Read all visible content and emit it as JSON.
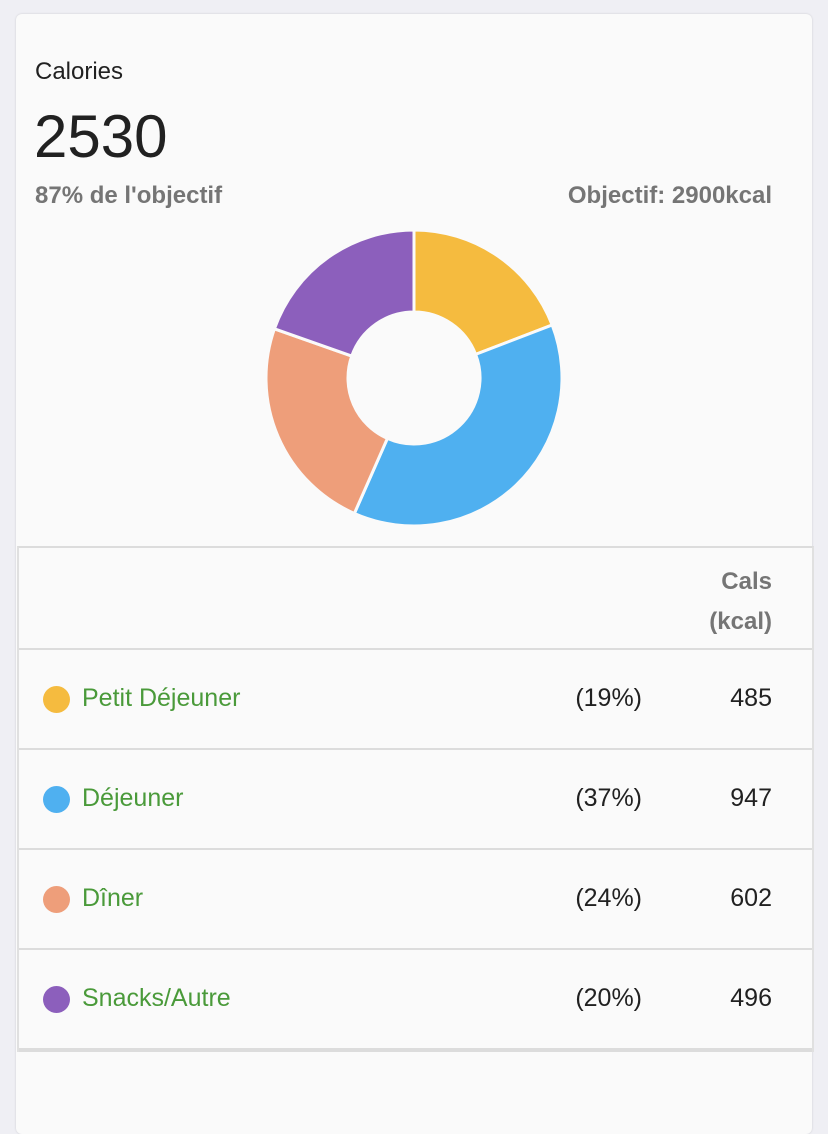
{
  "card": {
    "title": "Calories",
    "total": "2530",
    "percent_of_goal": "87% de l'objectif",
    "goal": "Objectif: 2900kcal"
  },
  "table": {
    "header": "Cals (kcal)",
    "header_line1": "Cals",
    "header_line2": "(kcal)"
  },
  "chart_data": {
    "type": "pie",
    "donut": true,
    "categories": [
      "Petit Déjeuner",
      "Déjeuner",
      "Dîner",
      "Snacks/Autre"
    ],
    "values": [
      485,
      947,
      602,
      496
    ],
    "percents": [
      "(19%)",
      "(37%)",
      "(24%)",
      "(20%)"
    ],
    "value_labels": [
      "485",
      "947",
      "602",
      "496"
    ],
    "colors": [
      "#f5bb3f",
      "#4fb0f0",
      "#ee9e7a",
      "#8c5fbc"
    ]
  }
}
